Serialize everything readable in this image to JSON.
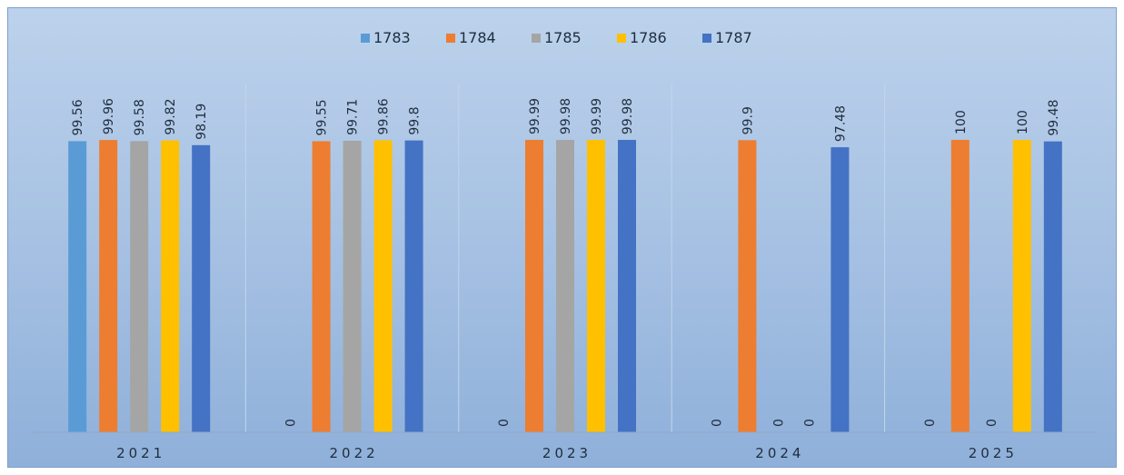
{
  "chart_data": {
    "type": "bar",
    "categories": [
      "2021",
      "2022",
      "2023",
      "2024",
      "2025"
    ],
    "series": [
      {
        "name": "1783",
        "color": "#5b9bd5",
        "values": [
          99.56,
          0,
          0,
          0,
          0
        ]
      },
      {
        "name": "1784",
        "color": "#ed7d31",
        "values": [
          99.96,
          99.55,
          99.99,
          99.9,
          100
        ]
      },
      {
        "name": "1785",
        "color": "#a5a5a5",
        "values": [
          99.58,
          99.71,
          99.98,
          0,
          0
        ]
      },
      {
        "name": "1786",
        "color": "#ffc000",
        "values": [
          99.82,
          99.86,
          99.99,
          0,
          100
        ]
      },
      {
        "name": "1787",
        "color": "#4472c4",
        "values": [
          98.19,
          99.8,
          99.98,
          97.48,
          99.48
        ]
      }
    ],
    "ylim": [
      0,
      100
    ],
    "legend": "top-center",
    "grid": false
  }
}
